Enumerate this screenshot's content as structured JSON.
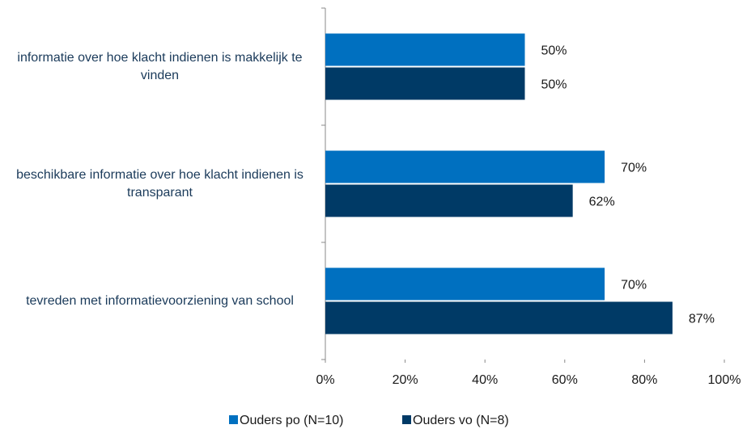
{
  "chart_data": {
    "type": "barh",
    "categories": [
      "informatie over hoe klacht indienen is makkelijk te vinden",
      "beschikbare informatie over hoe klacht indienen is transparant",
      "tevreden met informatievoorziening van school"
    ],
    "series": [
      {
        "name": "Ouders po (N=10)",
        "color": "#0070c0",
        "values": [
          50,
          70,
          70
        ],
        "value_labels": [
          "50%",
          "70%",
          "70%"
        ]
      },
      {
        "name": "Ouders vo (N=8)",
        "color": "#003a66",
        "values": [
          50,
          62,
          87
        ],
        "value_labels": [
          "50%",
          "62%",
          "87%"
        ]
      }
    ],
    "xlim": [
      0,
      100
    ],
    "xticks": [
      {
        "value": 0,
        "label": "0%"
      },
      {
        "value": 20,
        "label": "20%"
      },
      {
        "value": 40,
        "label": "40%"
      },
      {
        "value": 60,
        "label": "60%"
      },
      {
        "value": 80,
        "label": "80%"
      },
      {
        "value": 100,
        "label": "100%"
      }
    ],
    "legend": "bottom"
  }
}
